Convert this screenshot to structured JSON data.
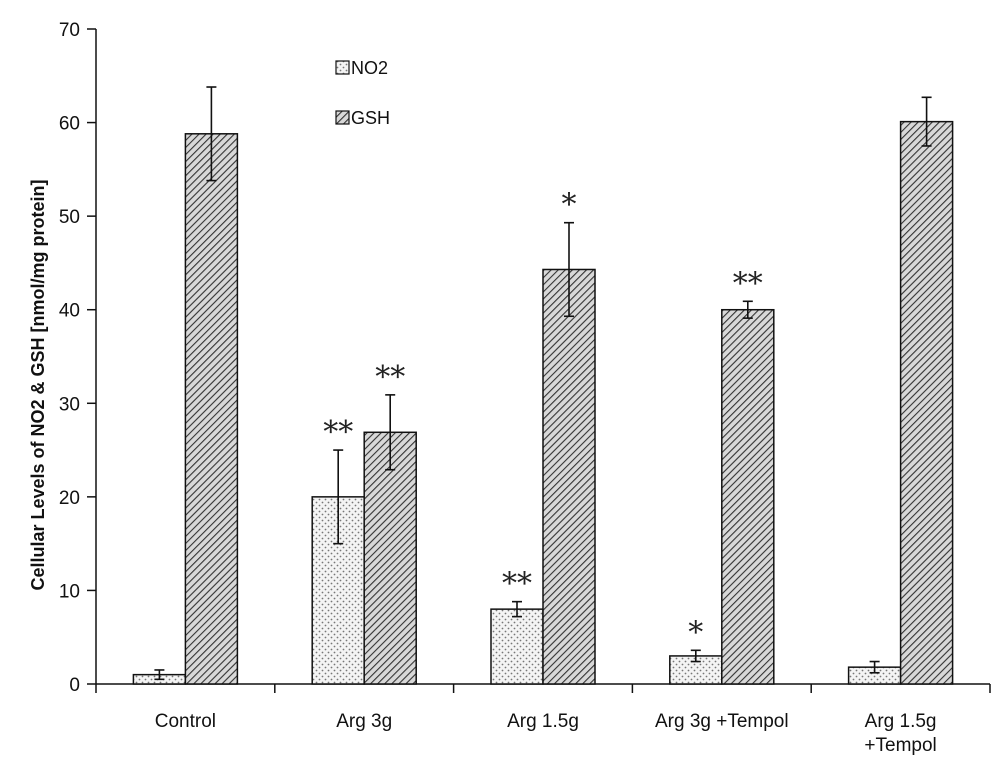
{
  "chart_data": {
    "type": "bar",
    "title": "",
    "xlabel": "",
    "ylabel": "Cellular Levels of  NO2 & GSH [nmol/mg protein]",
    "ylim": [
      0,
      70
    ],
    "yticks": [
      "0",
      "10",
      "20",
      "30",
      "40",
      "50",
      "60",
      "70"
    ],
    "categories": [
      [
        "Control"
      ],
      [
        "Arg 3g"
      ],
      [
        "Arg 1.5g"
      ],
      [
        "Arg 3g +Tempol"
      ],
      [
        "Arg 1.5g",
        "+Tempol"
      ]
    ],
    "series": [
      {
        "name": "NO2",
        "pattern": "dots",
        "values": [
          1,
          20,
          8,
          3,
          1.8
        ],
        "errors": [
          0.5,
          5,
          0.8,
          0.6,
          0.6
        ],
        "significance": [
          "",
          "**",
          "**",
          "*",
          ""
        ]
      },
      {
        "name": "GSH",
        "pattern": "hatch",
        "values": [
          58.8,
          26.9,
          44.3,
          40,
          60.1
        ],
        "errors": [
          5,
          4,
          5,
          0.9,
          2.6
        ],
        "significance": [
          "",
          "**",
          "*",
          "**",
          ""
        ]
      }
    ],
    "legend": {
      "placement": "top-left",
      "entries": [
        "NO2",
        "GSH"
      ]
    },
    "grid": false
  }
}
